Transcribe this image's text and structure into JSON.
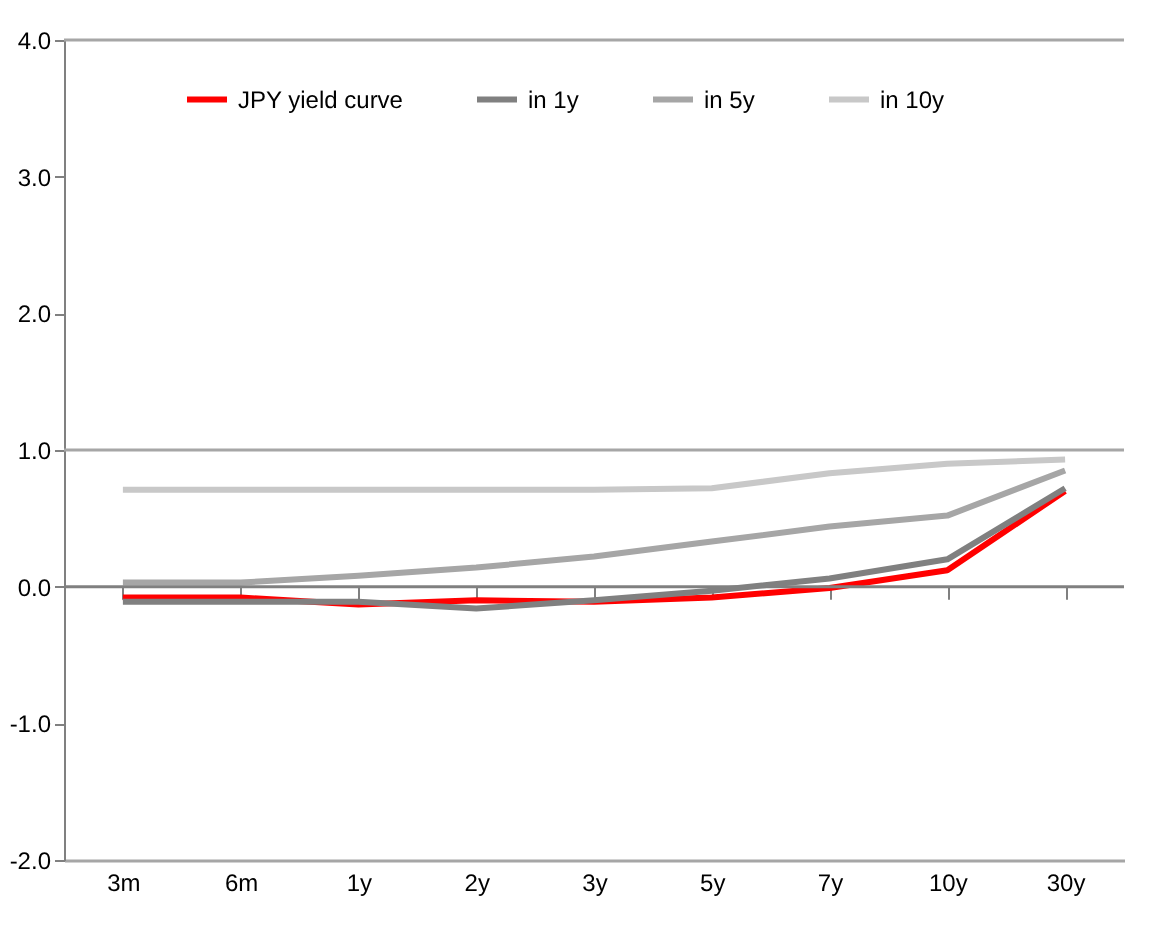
{
  "chart_data": {
    "type": "line",
    "categories": [
      "3m",
      "6m",
      "1y",
      "2y",
      "3y",
      "5y",
      "7y",
      "10y",
      "30y"
    ],
    "series": [
      {
        "name": "JPY yield curve",
        "color": "#ff0000",
        "values": [
          -0.08,
          -0.08,
          -0.13,
          -0.1,
          -0.11,
          -0.08,
          -0.01,
          0.12,
          0.7
        ]
      },
      {
        "name": "in 1y",
        "color": "#808080",
        "values": [
          -0.11,
          -0.11,
          -0.11,
          -0.16,
          -0.1,
          -0.03,
          0.06,
          0.2,
          0.72
        ]
      },
      {
        "name": "in 5y",
        "color": "#a6a6a6",
        "values": [
          0.03,
          0.03,
          0.08,
          0.14,
          0.22,
          0.33,
          0.44,
          0.52,
          0.85
        ]
      },
      {
        "name": "in 10y",
        "color": "#c8c8c8",
        "values": [
          0.71,
          0.71,
          0.71,
          0.71,
          0.71,
          0.72,
          0.83,
          0.9,
          0.93
        ]
      }
    ],
    "ylim": [
      -2.0,
      4.0
    ],
    "yticks": [
      {
        "value": -2,
        "label": "-2.0"
      },
      {
        "value": -1,
        "label": "-1.0"
      },
      {
        "value": 0,
        "label": "0.0"
      },
      {
        "value": 1,
        "label": "1.0"
      },
      {
        "value": 2,
        "label": "2.0"
      },
      {
        "value": 3,
        "label": "3.0"
      },
      {
        "value": 4,
        "label": "4.0"
      }
    ],
    "ref_lines": [
      {
        "axis": "y",
        "value": 4.0,
        "color": "#a6a6a6"
      },
      {
        "axis": "y",
        "value": 1.0,
        "color": "#a6a6a6"
      },
      {
        "axis": "y",
        "value": 0.0,
        "color": "#808080"
      }
    ],
    "legend": "top",
    "marker": "none",
    "line_style": "solid",
    "grid": false
  }
}
